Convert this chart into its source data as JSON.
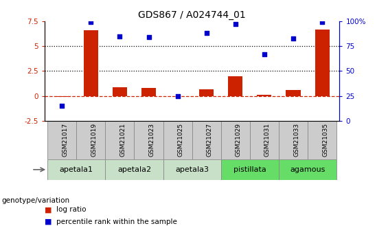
{
  "title": "GDS867 / A024744_01",
  "samples": [
    "GSM21017",
    "GSM21019",
    "GSM21021",
    "GSM21023",
    "GSM21025",
    "GSM21027",
    "GSM21029",
    "GSM21031",
    "GSM21033",
    "GSM21035"
  ],
  "log_ratio": [
    -0.1,
    6.6,
    0.9,
    0.8,
    -0.05,
    0.7,
    2.0,
    0.1,
    0.6,
    6.7
  ],
  "percentile_rank": [
    15,
    99,
    85,
    84,
    25,
    88,
    97,
    67,
    83,
    99
  ],
  "groups": [
    {
      "label": "apetala1",
      "indices": [
        0,
        1
      ],
      "color": "#c8e0c8"
    },
    {
      "label": "apetala2",
      "indices": [
        2,
        3
      ],
      "color": "#c8e0c8"
    },
    {
      "label": "apetala3",
      "indices": [
        4,
        5
      ],
      "color": "#c8e0c8"
    },
    {
      "label": "pistillata",
      "indices": [
        6,
        7
      ],
      "color": "#66dd66"
    },
    {
      "label": "agamous",
      "indices": [
        8,
        9
      ],
      "color": "#66dd66"
    }
  ],
  "bar_color": "#cc2200",
  "dot_color": "#0000cc",
  "ylim_left": [
    -2.5,
    7.5
  ],
  "ylim_right": [
    0,
    100
  ],
  "yticks_left": [
    -2.5,
    0,
    2.5,
    5,
    7.5
  ],
  "yticks_right": [
    0,
    25,
    50,
    75,
    100
  ],
  "hlines_dotted": [
    2.5,
    5.0
  ],
  "hline_zero_color": "#cc2200",
  "legend_items": [
    {
      "label": "log ratio",
      "color": "#cc2200"
    },
    {
      "label": "percentile rank within the sample",
      "color": "#0000cc"
    }
  ],
  "genotype_label": "genotype/variation",
  "sample_box_color": "#cccccc",
  "sample_box_edge": "#888888"
}
